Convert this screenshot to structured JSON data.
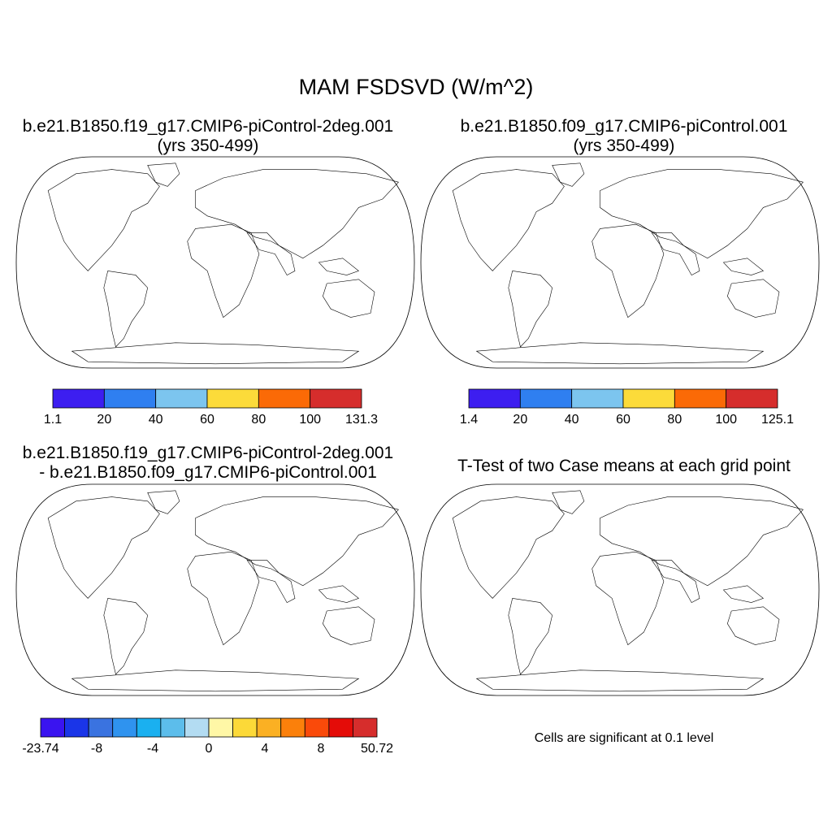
{
  "figure": {
    "title": "MAM FSDSVD (W/m^2)"
  },
  "panels": [
    {
      "id": "case1",
      "title_line1": "b.e21.B1850.f19_g17.CMIP6-piControl-2deg.001",
      "title_line2": "(yrs 350-499)",
      "colorbar": {
        "colors": [
          "#3d1ef0",
          "#2f7ff0",
          "#7cc5ef",
          "#fcdb3a",
          "#fb6a06",
          "#d62d2c"
        ],
        "labels": [
          "1.1",
          "20",
          "40",
          "60",
          "80",
          "100",
          "131.3"
        ]
      }
    },
    {
      "id": "case2",
      "title_line1": "b.e21.B1850.f09_g17.CMIP6-piControl.001",
      "title_line2": "(yrs 350-499)",
      "colorbar": {
        "colors": [
          "#3d1ef0",
          "#2f7ff0",
          "#7cc5ef",
          "#fcdb3a",
          "#fb6a06",
          "#d62d2c"
        ],
        "labels": [
          "1.4",
          "20",
          "40",
          "60",
          "80",
          "100",
          "125.1"
        ]
      }
    },
    {
      "id": "difference",
      "title_line1": "b.e21.B1850.f19_g17.CMIP6-piControl-2deg.001",
      "title_line2": "- b.e21.B1850.f09_g17.CMIP6-piControl.001",
      "colorbar": {
        "colors": [
          "#3a14f0",
          "#1a35e8",
          "#3a73e0",
          "#2f93ef",
          "#1ab0f0",
          "#5cbdeb",
          "#b3dcf2",
          "#fff7a6",
          "#fcd938",
          "#fbb023",
          "#fb800b",
          "#fa4a0a",
          "#e40c08",
          "#d62d2c"
        ],
        "labels": [
          "-23.74",
          "-8",
          "-4",
          "0",
          "4",
          "8",
          "50.72"
        ]
      }
    },
    {
      "id": "ttest",
      "title_line1": "T-Test of two Case means at each grid point",
      "note": "Cells are significant at 0.1 level",
      "fill_color": "#ff0000"
    }
  ]
}
